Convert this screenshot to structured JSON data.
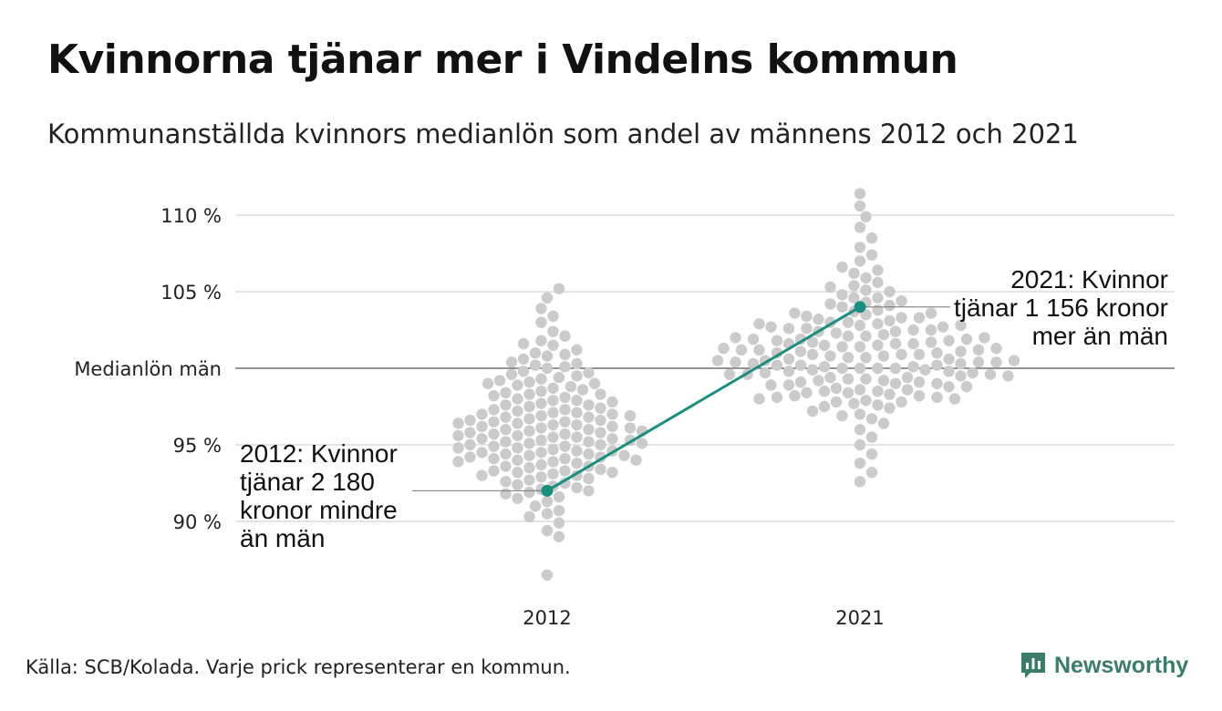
{
  "title": "Kvinnorna tjänar mer i Vindelns kommun",
  "subtitle": "Kommunanställda kvinnors medianlön som andel av männens 2012 och 2021",
  "source": "Källa: SCB/Kolada. Varje prick representerar en kommun.",
  "brand": "Newsworthy",
  "colors": {
    "highlight": "#1a8f7f",
    "dots": "#cbcbcb",
    "grid": "#e4e4e4",
    "reference": "#555555"
  },
  "chart_data": {
    "type": "scatter",
    "categories": [
      "2012",
      "2021"
    ],
    "ylim": [
      86,
      111
    ],
    "yticks": [
      {
        "value": 90,
        "label": "90 %"
      },
      {
        "value": 95,
        "label": "95 %"
      },
      {
        "value": 100,
        "label": "Medianlön män"
      },
      {
        "value": 105,
        "label": "105 %"
      },
      {
        "value": 110,
        "label": "110 %"
      }
    ],
    "reference_line": 100,
    "highlight": {
      "name": "Vindeln",
      "values": [
        92.0,
        104.0
      ],
      "annotations": [
        [
          "2012: Kvinnor",
          "tjänar 2 180",
          "kronor mindre",
          "än män"
        ],
        [
          "2021: Kvinnor",
          "tjänar 1 156 kronor",
          "mer än män"
        ]
      ]
    },
    "series": [
      {
        "name": "",
        "values": [
          105.2,
          104.6,
          103.9,
          103.4,
          103.0,
          102.4,
          102.1,
          101.8,
          101.5,
          101.2,
          101.0,
          100.8,
          100.6,
          100.4,
          100.2,
          100.1,
          100.0,
          99.8,
          99.6,
          99.4,
          99.3,
          99.1,
          99.0,
          98.8,
          98.6,
          98.5,
          98.3,
          98.2,
          98.0,
          97.9,
          97.7,
          97.6,
          97.5,
          97.3,
          97.2,
          97.0,
          96.9,
          96.8,
          96.6,
          96.5,
          96.4,
          96.2,
          96.1,
          96.0,
          95.9,
          95.8,
          95.6,
          95.5,
          95.4,
          95.3,
          95.1,
          95.0,
          94.9,
          94.8,
          94.6,
          94.5,
          94.4,
          94.3,
          94.1,
          94.0,
          93.9,
          93.7,
          93.6,
          93.5,
          93.3,
          93.2,
          93.0,
          92.9,
          92.7,
          92.5,
          92.3,
          92.1,
          91.9,
          91.6,
          91.3,
          91.0,
          90.7,
          90.3,
          89.9,
          89.4,
          89.0,
          86.5,
          100.3,
          99.7,
          99.0,
          98.4,
          97.8,
          97.1,
          96.7,
          96.3,
          95.7,
          95.2,
          94.7,
          94.2,
          93.8,
          93.4,
          92.8,
          92.2,
          91.5,
          90.5,
          98.9,
          97.4,
          96.0,
          95.0,
          94.0,
          93.1,
          96.6,
          95.6,
          94.6,
          97.9,
          99.2,
          93.9,
          96.2,
          95.3,
          94.4,
          92.6,
          101.6,
          98.1,
          97.0,
          96.4,
          95.9,
          95.1,
          94.3,
          93.3,
          97.6,
          96.8,
          95.4,
          94.1,
          96.9,
          95.7,
          92.4,
          98.7,
          100.9,
          91.8,
          97.3,
          96.1,
          94.8,
          93.6,
          95.2,
          96.5,
          94.5,
          95.8,
          97.1,
          93.2,
          98.3,
          99.5,
          92.0,
          96.3,
          95.5,
          94.9,
          94.2,
          93.0
        ]
      },
      {
        "name": "",
        "values": [
          111.4,
          110.6,
          109.9,
          109.2,
          108.5,
          107.9,
          107.4,
          107.0,
          106.6,
          106.2,
          105.9,
          105.6,
          105.3,
          105.0,
          104.8,
          104.6,
          104.4,
          104.2,
          104.0,
          103.8,
          103.6,
          103.4,
          103.3,
          103.1,
          103.0,
          102.8,
          102.7,
          102.5,
          102.4,
          102.2,
          102.1,
          102.0,
          101.8,
          101.7,
          101.6,
          101.4,
          101.3,
          101.2,
          101.0,
          100.9,
          100.8,
          100.6,
          100.5,
          100.4,
          100.2,
          100.1,
          100.0,
          99.8,
          99.7,
          99.6,
          99.4,
          99.3,
          99.2,
          99.0,
          98.9,
          98.8,
          98.6,
          98.5,
          98.4,
          98.2,
          98.1,
          98.0,
          97.8,
          97.6,
          97.4,
          97.2,
          97.0,
          96.7,
          96.4,
          96.0,
          95.5,
          95.0,
          94.4,
          93.8,
          93.2,
          92.6,
          103.7,
          102.9,
          102.3,
          101.9,
          101.5,
          101.1,
          100.7,
          100.3,
          99.9,
          99.5,
          99.1,
          98.7,
          98.3,
          97.9,
          97.5,
          96.9,
          104.1,
          103.2,
          102.6,
          101.8,
          101.0,
          100.2,
          99.4,
          98.6,
          97.8,
          106.4,
          105.1,
          104.3,
          103.5,
          102.7,
          101.9,
          101.2,
          100.5,
          99.8,
          99.0,
          98.2,
          102.0,
          101.4,
          100.6,
          99.6,
          98.9,
          100.0,
          101.6,
          100.9,
          99.3,
          102.4,
          98.5,
          103.0,
          100.4,
          101.3,
          99.7,
          97.7,
          105.4,
          102.8,
          100.1,
          98.0,
          101.7,
          99.1,
          103.6,
          100.8,
          102.1,
          99.9,
          100.3,
          101.1,
          98.4,
          104.6,
          102.5,
          100.7,
          99.5,
          101.5,
          100.0,
          98.8,
          103.3,
          100.2,
          99.2,
          101.9,
          100.5,
          102.6,
          98.1,
          101.2,
          100.0,
          100.4,
          99.6,
          102.9,
          100.9,
          101.6
        ]
      }
    ]
  }
}
